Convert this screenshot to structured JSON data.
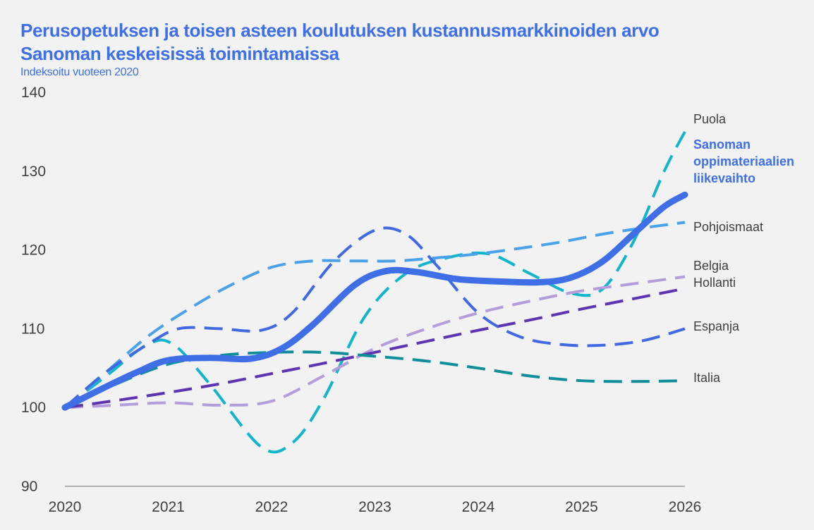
{
  "title": {
    "line1": "Perusopetuksen ja toisen asteen koulutuksen kustannusmarkkinoiden arvo",
    "line2": "Sanoman keskeisissä toimintamaissa"
  },
  "subtitle": "Indeksoitu vuoteen 2020",
  "chart_data": {
    "type": "line",
    "title": "Perusopetuksen ja toisen asteen koulutuksen kustannusmarkkinoiden arvo Sanoman keskeisissä toimintamaissa",
    "subtitle": "Indeksoitu vuoteen 2020",
    "xlabel": "",
    "ylabel": "",
    "ylim": [
      90,
      140
    ],
    "yticks": [
      "90",
      "100",
      "110",
      "120",
      "130",
      "140"
    ],
    "xticks": [
      "2020",
      "2021",
      "2022",
      "2023",
      "2024",
      "2025",
      "2026"
    ],
    "grid": false,
    "legend_placement": "right",
    "series": [
      {
        "name": "Puola",
        "label_lines": [
          "Puola"
        ],
        "color": "#12b5cb",
        "dashed": true,
        "bold": false,
        "x": [
          2020,
          2020.4,
          2020.8,
          2021.05,
          2021.4,
          2021.9,
          2022.2,
          2022.5,
          2022.9,
          2023.3,
          2023.7,
          2024.1,
          2024.5,
          2024.9,
          2025.2,
          2025.5,
          2025.8,
          2026
        ],
        "y": [
          100,
          104,
          108,
          108,
          103,
          95,
          95.5,
          101,
          111.5,
          117,
          119,
          119.5,
          117,
          114.5,
          115,
          121,
          130,
          135
        ]
      },
      {
        "name": "Sanoman oppimateriaalien liikevaihto",
        "label_lines": [
          "Sanoman",
          "oppimateriaalien",
          "liikevaihto"
        ],
        "color": "#3f6fe6",
        "dashed": false,
        "bold": true,
        "x": [
          2020,
          2020.3,
          2020.7,
          2021,
          2021.4,
          2021.8,
          2022.1,
          2022.4,
          2022.8,
          2023.1,
          2023.4,
          2023.8,
          2024.2,
          2024.6,
          2024.9,
          2025.2,
          2025.5,
          2025.8,
          2026
        ],
        "y": [
          100,
          102,
          104.5,
          106,
          106.3,
          106.2,
          107.5,
          110.5,
          115.5,
          117.3,
          117.2,
          116.3,
          116,
          115.9,
          116.5,
          118.5,
          122,
          125.5,
          127
        ]
      },
      {
        "name": "Pohjoismaat",
        "label_lines": [
          "Pohjoismaat"
        ],
        "color": "#4aa3ea",
        "dashed": true,
        "bold": false,
        "x": [
          2020,
          2020.4,
          2020.8,
          2021.2,
          2021.6,
          2022,
          2022.4,
          2022.8,
          2023.2,
          2023.6,
          2024,
          2024.4,
          2024.8,
          2025.2,
          2025.6,
          2026
        ],
        "y": [
          100,
          104.5,
          109,
          112.5,
          115.5,
          117.8,
          118.6,
          118.6,
          118.6,
          119,
          119.5,
          120.2,
          121,
          122,
          122.8,
          123.5
        ]
      },
      {
        "name": "Belgia",
        "label_lines": [
          "Belgia"
        ],
        "color": "#b39ddb",
        "dashed": true,
        "bold": false,
        "x": [
          2020,
          2020.5,
          2021,
          2021.5,
          2022,
          2022.5,
          2023,
          2023.5,
          2024,
          2024.5,
          2025,
          2025.5,
          2026
        ],
        "y": [
          100,
          100.3,
          100.6,
          100.3,
          100.8,
          104,
          107.5,
          110,
          112,
          113.5,
          114.8,
          115.7,
          116.6
        ]
      },
      {
        "name": "Hollanti",
        "label_lines": [
          "Hollanti"
        ],
        "color": "#5e35b1",
        "dashed": true,
        "bold": false,
        "x": [
          2020,
          2020.5,
          2021,
          2021.5,
          2022,
          2022.5,
          2023,
          2023.5,
          2024,
          2024.5,
          2025,
          2025.5,
          2026
        ],
        "y": [
          100,
          100.9,
          101.9,
          103,
          104.3,
          105.6,
          107,
          108.4,
          109.8,
          111.1,
          112.5,
          113.8,
          115.1
        ]
      },
      {
        "name": "Espanja",
        "label_lines": [
          "Espanja"
        ],
        "color": "#4169e1",
        "dashed": true,
        "bold": false,
        "x": [
          2020,
          2020.4,
          2020.8,
          2021.1,
          2021.5,
          2021.9,
          2022.2,
          2022.6,
          2023,
          2023.3,
          2023.6,
          2024,
          2024.4,
          2024.8,
          2025.2,
          2025.6,
          2026
        ],
        "y": [
          100,
          104.5,
          108,
          110,
          110,
          109.8,
          112,
          118.5,
          122.5,
          122,
          118,
          112,
          109,
          108,
          107.9,
          108.5,
          110
        ]
      },
      {
        "name": "Italia",
        "label_lines": [
          "Italia"
        ],
        "color": "#0e8f9a",
        "dashed": true,
        "bold": false,
        "x": [
          2020,
          2020.5,
          2021,
          2021.5,
          2022,
          2022.5,
          2023,
          2023.5,
          2024,
          2024.5,
          2025,
          2025.5,
          2026
        ],
        "y": [
          100,
          103,
          105.5,
          106.6,
          107,
          107,
          106.5,
          105.9,
          105,
          104,
          103.4,
          103.3,
          103.4
        ]
      }
    ]
  }
}
